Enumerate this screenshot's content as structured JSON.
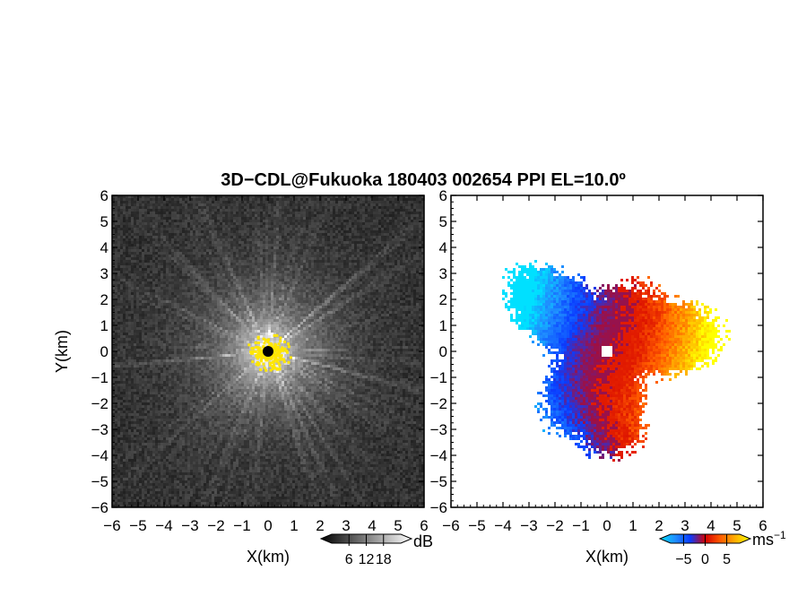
{
  "chart_data": [
    {
      "type": "heatmap",
      "panel": "reflectivity",
      "title": "3D−CDL@Fukuoka 180403 002654 PPI EL=10.0º",
      "xlabel": "X(km)",
      "ylabel": "Y(km)",
      "xlim": [
        -6,
        6
      ],
      "ylim": [
        -6,
        6
      ],
      "xticks": [
        -6,
        -5,
        -4,
        -3,
        -2,
        -1,
        0,
        1,
        2,
        3,
        4,
        5,
        6
      ],
      "yticks": [
        -6,
        -5,
        -4,
        -3,
        -2,
        -1,
        0,
        1,
        2,
        3,
        4,
        5,
        6
      ],
      "tick_labels": [
        "−6",
        "−5",
        "−4",
        "−3",
        "−2",
        "−1",
        "0",
        "1",
        "2",
        "3",
        "4",
        "5",
        "6"
      ],
      "colorbar": {
        "unit": "dB",
        "tick_values": [
          6,
          12,
          18
        ],
        "tick_labels": [
          "6",
          "12",
          "18"
        ],
        "range": [
          0,
          24
        ],
        "colors": [
          "#000000",
          "#ffffff"
        ]
      },
      "clutter_color": "#ffe600",
      "radar_color": "#000000"
    },
    {
      "type": "heatmap",
      "panel": "doppler-velocity",
      "xlabel": "X(km)",
      "xlim": [
        -6,
        6
      ],
      "ylim": [
        -6,
        6
      ],
      "xticks": [
        -6,
        -5,
        -4,
        -3,
        -2,
        -1,
        0,
        1,
        2,
        3,
        4,
        5,
        6
      ],
      "yticks": [
        -6,
        -5,
        -4,
        -3,
        -2,
        -1,
        0,
        1,
        2,
        3,
        4,
        5,
        6
      ],
      "tick_labels": [
        "−6",
        "−5",
        "−4",
        "−3",
        "−2",
        "−1",
        "0",
        "1",
        "2",
        "3",
        "4",
        "5",
        "6"
      ],
      "colorbar": {
        "unit": "ms",
        "unit_superscript": "−1",
        "tick_values": [
          -5,
          0,
          5
        ],
        "tick_labels": [
          "−5",
          "0",
          "5"
        ],
        "range": [
          -8,
          8
        ],
        "colors": [
          "#00e0ff",
          "#1f8fff",
          "#0a3cff",
          "#d40000",
          "#ff5a00",
          "#ffb000",
          "#ffff00"
        ]
      },
      "radar_color": "#ffffff"
    }
  ]
}
